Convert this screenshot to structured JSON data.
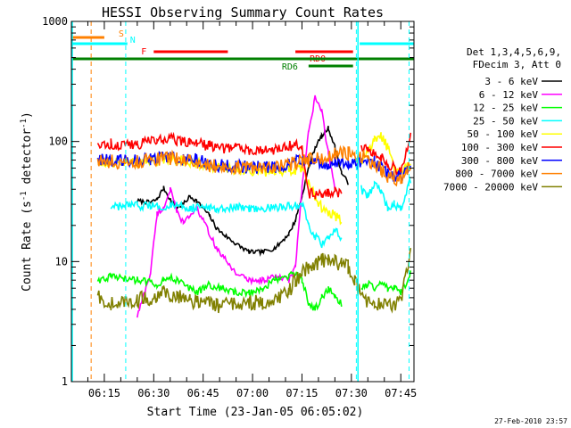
{
  "chart_data": {
    "type": "line",
    "title": "HESSI Observing Summary Count Rates",
    "xlabel": "Start Time (23-Jan-05 06:05:02)",
    "ylabel_main": "Count Rate (s",
    "ylabel_sup1": "-1",
    "ylabel_mid": " detector",
    "ylabel_sup2": "-1",
    "ylabel_end": ")",
    "footer": "27-Feb-2010 23:57",
    "y_scale": "log",
    "ylim": [
      1,
      1000
    ],
    "xlim_minutes": [
      0,
      104
    ],
    "x_ticks": [
      {
        "m": 10,
        "label": "06:15"
      },
      {
        "m": 25,
        "label": "06:30"
      },
      {
        "m": 40,
        "label": "06:45"
      },
      {
        "m": 55,
        "label": "07:00"
      },
      {
        "m": 70,
        "label": "07:15"
      },
      {
        "m": 85,
        "label": "07:30"
      },
      {
        "m": 100,
        "label": "07:45"
      }
    ],
    "y_ticks": [
      {
        "v": 1,
        "label": "1"
      },
      {
        "v": 10,
        "label": "10"
      },
      {
        "v": 100,
        "label": "100"
      },
      {
        "v": 1000,
        "label": "1000"
      }
    ],
    "legend": {
      "header1": "Det 1,3,4,5,6,9,",
      "header2": "FDecim 3, Att 0",
      "position": "right"
    },
    "flags": [
      {
        "label": "S",
        "color": "#ff8000",
        "x_start": 0,
        "x_end": 10,
        "level": 0
      },
      {
        "label": "N",
        "color": "#00ffff",
        "x_start": 0,
        "x_end": 17,
        "level": 1
      },
      {
        "label": "F",
        "color": "#ff0000",
        "x_start": 25,
        "x_end": 47.5,
        "level": 2
      },
      {
        "label": "RD0",
        "color": "#ff0000",
        "x_start": 68,
        "x_end": 85.5,
        "level": 2
      },
      {
        "label": "",
        "color": "#00ffff",
        "x_start": 87.5,
        "x_end": 104,
        "level": 1
      },
      {
        "label": "",
        "color": "#008000",
        "x_start": 0,
        "x_end": 104,
        "level": 3
      },
      {
        "label": "RD6",
        "color": "#008000",
        "x_start": 72,
        "x_end": 85.5,
        "level": 4
      }
    ],
    "markers": [
      {
        "x": 6,
        "color": "#ff8000",
        "style": "dashed"
      },
      {
        "x": 16.5,
        "color": "#00ffff",
        "style": "dashed"
      },
      {
        "x": 86.5,
        "color": "#00ffff",
        "style": "dashed"
      },
      {
        "x": 102.5,
        "color": "#00ffff",
        "style": "dashed"
      },
      {
        "x": 87,
        "color": "#00ffff",
        "style": "solid"
      }
    ],
    "x": [
      8,
      12,
      16,
      20,
      24,
      26,
      28,
      30,
      32,
      34,
      36,
      38,
      42,
      44,
      46,
      50,
      54,
      58,
      62,
      66,
      68,
      70,
      72,
      74,
      76,
      78,
      80,
      82,
      84,
      86,
      88,
      90,
      92,
      94,
      96,
      98,
      100,
      103
    ],
    "series": [
      {
        "name": "3 - 6 keV",
        "color": "#000000",
        "values": [
          null,
          null,
          null,
          32,
          31,
          33,
          41,
          33,
          28,
          30,
          35,
          32,
          24,
          19,
          17,
          14,
          12,
          12,
          13,
          17,
          22,
          35,
          60,
          90,
          110,
          130,
          90,
          55,
          45,
          null,
          null,
          null,
          null,
          null,
          null,
          null,
          null,
          null
        ]
      },
      {
        "name": "6 - 12 keV",
        "color": "#ff00ff",
        "values": [
          null,
          null,
          null,
          3.5,
          8,
          25,
          28,
          40,
          26,
          21,
          24,
          28,
          17,
          13,
          11,
          8,
          7,
          7,
          7.5,
          7,
          9,
          40,
          120,
          230,
          180,
          80,
          40,
          null,
          null,
          null,
          null,
          null,
          null,
          null,
          null,
          null,
          null,
          null
        ]
      },
      {
        "name": "12 - 25 keV",
        "color": "#00ff00",
        "values": [
          7,
          7.5,
          7.2,
          7,
          6.8,
          6.5,
          7,
          7.5,
          7,
          6.5,
          6,
          5.5,
          6.5,
          6,
          6,
          5.5,
          5.5,
          6,
          7,
          7.5,
          8,
          7,
          4.5,
          4,
          5,
          6,
          5,
          4.5,
          null,
          null,
          6,
          6.5,
          6,
          6.5,
          6,
          6,
          5.5,
          8
        ]
      },
      {
        "name": "25 - 50 keV",
        "color": "#00ffff",
        "values": [
          null,
          28,
          29,
          29,
          29,
          29,
          29,
          29,
          29,
          29,
          28,
          28,
          28,
          28,
          28,
          28,
          28,
          28,
          28,
          29,
          29,
          30,
          20,
          16,
          14,
          16,
          18,
          16,
          null,
          null,
          40,
          35,
          45,
          38,
          28,
          30,
          28,
          48
        ]
      },
      {
        "name": "50 - 100 keV",
        "color": "#ffff00",
        "values": [
          65,
          68,
          66,
          66,
          68,
          68,
          70,
          72,
          70,
          69,
          68,
          66,
          62,
          60,
          60,
          58,
          56,
          56,
          56,
          58,
          58,
          60,
          45,
          35,
          28,
          26,
          24,
          22,
          null,
          null,
          70,
          85,
          100,
          110,
          90,
          60,
          55,
          65
        ]
      },
      {
        "name": "100 - 300 keV",
        "color": "#ff0000",
        "values": [
          97,
          95,
          95,
          96,
          100,
          102,
          105,
          104,
          103,
          102,
          100,
          97,
          92,
          90,
          89,
          88,
          86,
          86,
          87,
          92,
          94,
          85,
          38,
          35,
          36,
          38,
          38,
          37,
          null,
          null,
          85,
          88,
          80,
          75,
          66,
          60,
          56,
          110
        ]
      },
      {
        "name": "300 - 800 keV",
        "color": "#0000ff",
        "values": [
          72,
          70,
          70,
          71,
          72,
          73,
          75,
          74,
          73,
          73,
          72,
          70,
          66,
          64,
          63,
          62,
          61,
          61,
          62,
          66,
          68,
          70,
          68,
          67,
          66,
          66,
          67,
          67,
          66,
          65,
          70,
          72,
          67,
          60,
          55,
          52,
          50,
          60
        ]
      },
      {
        "name": "800 - 7000 keV",
        "color": "#ff8000",
        "values": [
          70,
          68,
          67,
          68,
          69,
          70,
          72,
          72,
          71,
          70,
          69,
          67,
          64,
          63,
          62,
          61,
          60,
          60,
          61,
          64,
          66,
          68,
          70,
          72,
          74,
          76,
          78,
          79,
          80,
          80,
          75,
          72,
          64,
          58,
          52,
          50,
          48,
          65
        ]
      },
      {
        "name": "7000 - 20000 keV",
        "color": "#808000",
        "values": [
          5,
          4.5,
          4.5,
          4.8,
          5,
          5.2,
          5.5,
          5.3,
          5,
          5,
          4.8,
          4.6,
          4.5,
          4.3,
          4.4,
          4.3,
          4.5,
          4.6,
          5,
          5.5,
          7,
          8,
          9,
          9.5,
          10,
          10.5,
          10,
          9.5,
          9,
          7,
          5,
          4.5,
          4.5,
          4.6,
          4.4,
          4.5,
          4.5,
          12
        ]
      }
    ]
  }
}
